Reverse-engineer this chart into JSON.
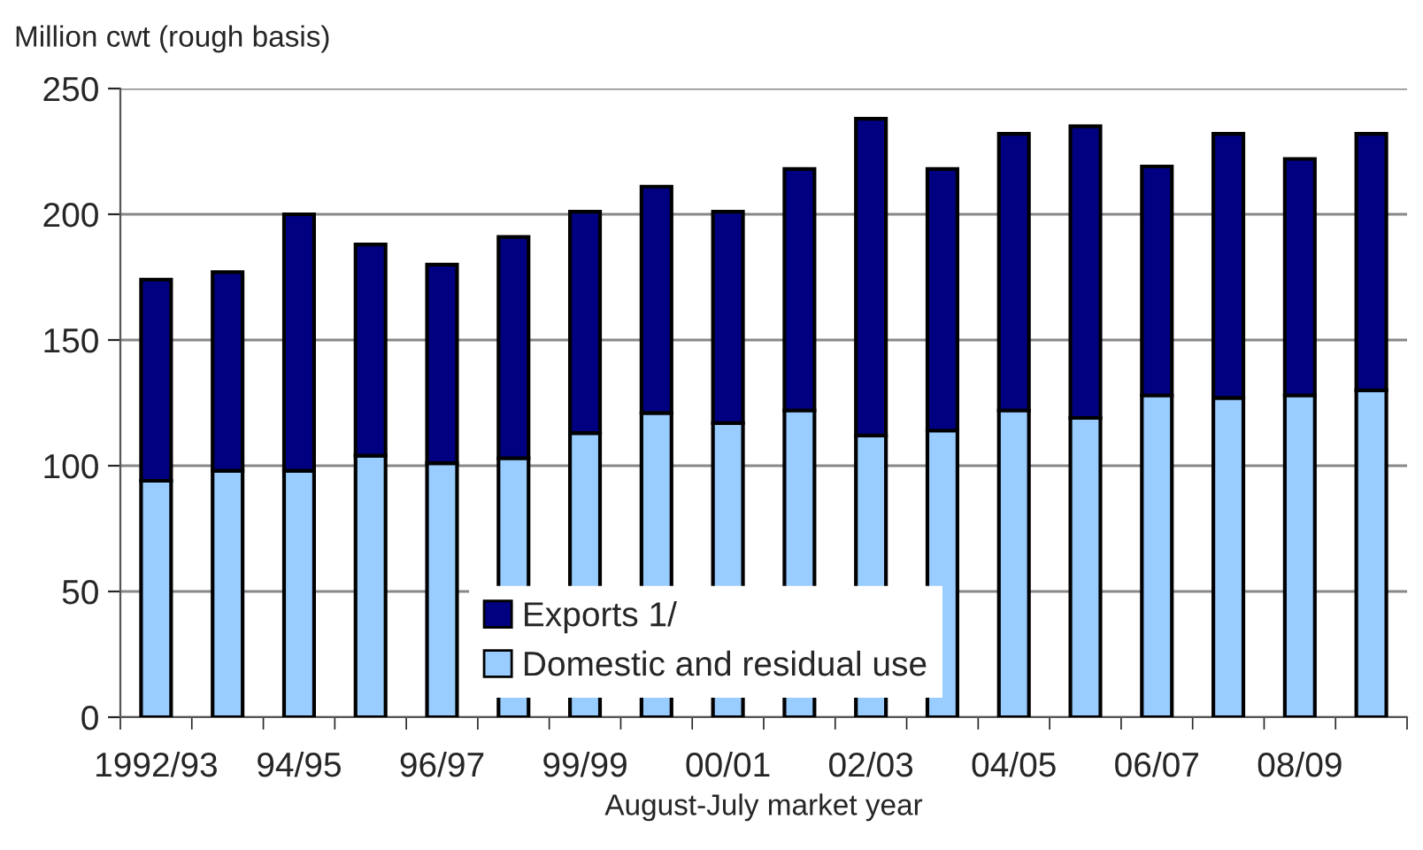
{
  "chart_data": {
    "type": "bar",
    "stacked": true,
    "ylabel": "Million cwt (rough basis)",
    "xlabel": "August-July market year",
    "categories": [
      "1992/93",
      null,
      "94/95",
      null,
      "96/97",
      null,
      "99/99",
      null,
      "00/01",
      null,
      "02/03",
      null,
      "04/05",
      null,
      "06/07",
      null,
      "08/09",
      null
    ],
    "series": [
      {
        "name": "Domestic and residual use",
        "color": "#99ccff",
        "values": [
          94,
          98,
          98,
          104,
          101,
          103,
          113,
          121,
          117,
          122,
          112,
          114,
          122,
          119,
          128,
          127,
          128,
          130
        ]
      },
      {
        "name": "Exports 1/",
        "color": "#000080",
        "values": [
          80,
          79,
          102,
          84,
          79,
          88,
          88,
          90,
          84,
          96,
          126,
          104,
          110,
          116,
          91,
          105,
          94,
          102
        ]
      }
    ],
    "ylim": [
      0,
      250
    ],
    "yticks": [
      0,
      50,
      100,
      150,
      200,
      250
    ],
    "grid": "y",
    "legend": "bottom"
  }
}
